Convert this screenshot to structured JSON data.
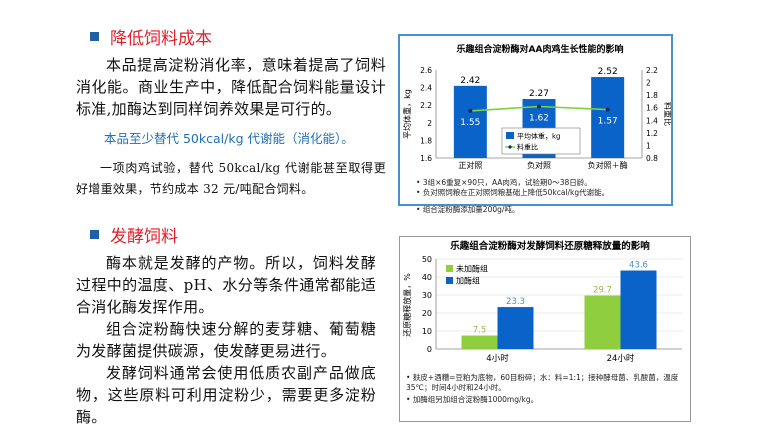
{
  "section1": {
    "heading": "降低饲料成本",
    "para1": "本品提高淀粉消化率，意味着提高了饲料消化能。商业生产中，降低配合饲料能量设计标准,加酶达到同样饲养效果是可行的。",
    "highlight": "本品至少替代 50kcal/kg 代谢能（消化能）。",
    "para2": "一项肉鸡试验，替代 50kcal/kg 代谢能甚至取得更好增重效果，节约成本 32 元/吨配合饲料。"
  },
  "section2": {
    "heading": "发酵饲料",
    "para1": "酶本就是发酵的产物。所以，饲料发酵过程中的温度、pH、水分等条件通常都能适合消化酶发挥作用。",
    "para2": "组合淀粉酶快速分解的麦芽糖、葡萄糖为发酵菌提供碳源，使发酵更易进行。",
    "para3": "发酵饲料通常会使用低质农副产品做底物，这些原料可利用淀粉少，需要更多淀粉酶。"
  },
  "colors": {
    "bullet": "#1e5fa8",
    "heading": "#e0202a",
    "bar_blue": "#0a63c8",
    "bar_green": "#8fce3f",
    "line_green": "#7dd13a",
    "value_label": "#9ab84a",
    "value_label_blue": "#4a8fd0"
  },
  "chart_data": [
    {
      "type": "bar",
      "title": "乐趣组合淀粉酶对AA肉鸡生长性能的影响",
      "categories": [
        "正对照",
        "负对照",
        "负对照＋酶"
      ],
      "series": [
        {
          "name": "平均体重，kg",
          "values": [
            2.42,
            2.27,
            2.52
          ],
          "axis": "left"
        },
        {
          "name": "料重比",
          "values": [
            1.55,
            1.62,
            1.57
          ],
          "axis": "right",
          "render": "line"
        }
      ],
      "ylabel": "平均体重，kg",
      "y2label": "料重比",
      "ylim": [
        1.6,
        2.6
      ],
      "yticks": [
        "1.6",
        "1.8",
        "2",
        "2.2",
        "2.4",
        "2.6"
      ],
      "y2lim": [
        0.8,
        2.2
      ],
      "y2ticks": [
        "0.8",
        "1",
        "1.2",
        "1.4",
        "1.6",
        "1.8",
        "2",
        "2.2"
      ],
      "legend_position": "bottom-center",
      "footnotes": [
        "3组×6重复×90只，AA肉鸡，试验期0～38日龄。",
        "负对照饲粮在正对照饲粮基础上降低50kcal/kg代谢能。",
        "组合淀粉酶添加量200g/吨。"
      ]
    },
    {
      "type": "bar",
      "title": "乐趣组合淀粉酶对发酵饲料还原糖释放量的影响",
      "categories": [
        "4小时",
        "24小时"
      ],
      "series": [
        {
          "name": "未加酶组",
          "values": [
            7.5,
            29.7
          ]
        },
        {
          "name": "加酶组",
          "values": [
            23.3,
            43.6
          ]
        }
      ],
      "ylabel": "还原糖释放量，%",
      "ylim": [
        0,
        50
      ],
      "yticks": [
        "0",
        "10",
        "20",
        "30",
        "40",
        "50"
      ],
      "legend_position": "top-left",
      "footnotes": [
        "麸皮+酒糟=豆粕为底物，60目粉碎；水：料=1:1；接种酵母菌、乳酸菌，温度35℃；时间4小时和24小时。",
        "加酶组另加组合淀粉酶1000mg/kg。"
      ]
    }
  ]
}
